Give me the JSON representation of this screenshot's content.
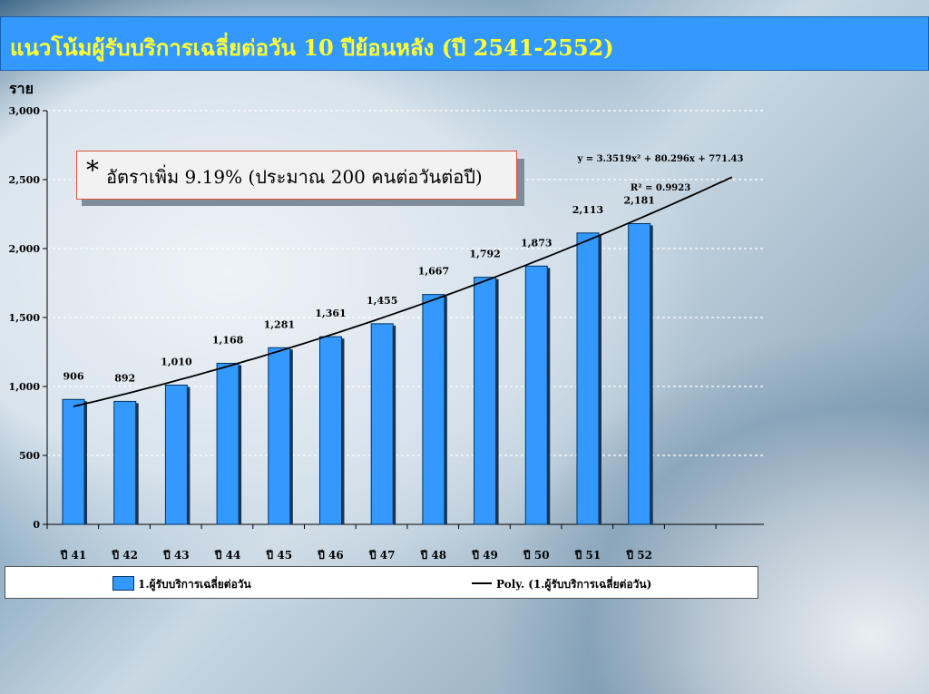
{
  "title": "แนวโน้มผู้รับบริการเฉลี่ยต่อวัน 10 ปีย้อนหลัง (ปี 2541-2552)",
  "callout": {
    "star": "*",
    "text": "อัตราเพิ่ม 9.19% (ประมาณ 200 คนต่อวันต่อปี)"
  },
  "colors": {
    "title_bg": "#3399ff",
    "title_text": "#ffff33",
    "bar_fill": "#3399ff",
    "bar_edge": "#003366",
    "trend_line": "#000000"
  },
  "chart_data": {
    "type": "bar",
    "ylabel": "ราย",
    "categories": [
      "ปี 41",
      "ปี 42",
      "ปี 43",
      "ปี 44",
      "ปี 45",
      "ปี 46",
      "ปี 47",
      "ปี 48",
      "ปี 49",
      "ปี 50",
      "ปี 51",
      "ปี 52"
    ],
    "series": [
      {
        "name": "1.ผู้รับบริการเฉลี่ยต่อวัน",
        "values": [
          906,
          892,
          1010,
          1168,
          1281,
          1361,
          1455,
          1667,
          1792,
          1873,
          2113,
          2181
        ],
        "value_labels": [
          "906",
          "892",
          "1,010",
          "1,168",
          "1,281",
          "1,361",
          "1,455",
          "1,667",
          "1,792",
          "1,873",
          "2,113",
          "2,181"
        ]
      }
    ],
    "trendline": {
      "name": "Poly. (1.ผู้รับบริการเฉลี่ยต่อวัน)",
      "equation": "y = 3.3519x² + 80.296x + 771.43",
      "r_squared": "R² = 0.9923",
      "coefficients": {
        "a": 3.3519,
        "b": 80.296,
        "c": 771.43
      }
    },
    "ylim": [
      0,
      3000
    ],
    "yticks": [
      0,
      500,
      1000,
      1500,
      2000,
      2500,
      3000
    ],
    "ytick_labels": [
      "0",
      "500",
      "1,000",
      "1,500",
      "2,000",
      "2,500",
      "3,000"
    ],
    "grid": true,
    "legend_position": "bottom"
  }
}
